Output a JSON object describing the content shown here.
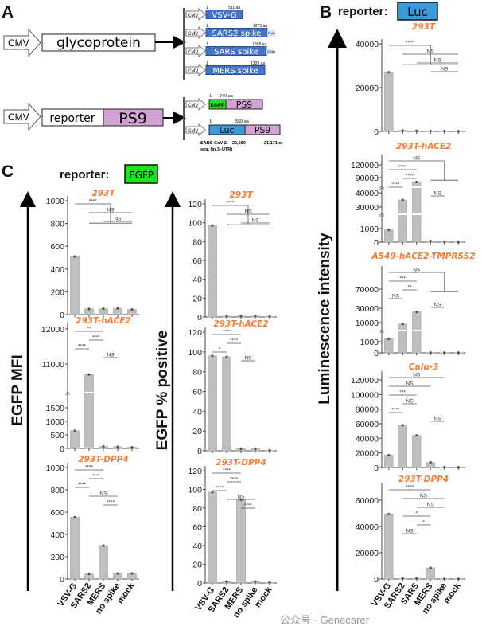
{
  "panels": {
    "A": {
      "letter": "A",
      "promoter": "CMV",
      "glycoprotein_label": "glycoprotein",
      "reporter_label": "reporter",
      "ps9_label": "PS9",
      "glycoproteins": [
        {
          "name": "VSV-G",
          "start": "1",
          "end": "511 aa",
          "tag": ""
        },
        {
          "name": "SARS2 spike",
          "start": "1",
          "end": "1273 aa",
          "tag": "FLAG"
        },
        {
          "name": "SARS spike",
          "start": "1",
          "end": "1268 aa",
          "tag": "C9 tag"
        },
        {
          "name": "MERS spike",
          "start": "1",
          "end": "1339 aa",
          "tag": ""
        }
      ],
      "reporters": [
        {
          "name": "EGFP",
          "start": "1",
          "end": "240 aa"
        },
        {
          "name": "Luc",
          "start": "1",
          "end": "550 aa"
        }
      ],
      "seq_note_1": "SARS-CoV-2:",
      "seq_pos_1": "20,080",
      "seq_pos_2": "21,171 nt",
      "seq_note_2": "seq. (in 3'-UTR)"
    },
    "B": {
      "letter": "B",
      "reporter_prefix": "reporter:",
      "reporter": "Luc",
      "y_axis_title": "Luminescence intensity"
    },
    "C": {
      "letter": "C",
      "reporter_prefix": "reporter:",
      "reporter": "EGFP",
      "y_axis_title_left": "EGFP MFI",
      "y_axis_title_right": "EGFP % positive"
    }
  },
  "colors": {
    "glycoprotein": "#4472c4",
    "egfp": "#22e022",
    "luc": "#3a9ad9",
    "ps9": "#d3a3d6",
    "bar": "#bfbfbf",
    "title": "#f07f3c"
  },
  "watermark": "公众号 · Genecarer",
  "chart_data": [
    {
      "id": "B1",
      "type": "bar",
      "title": "293T",
      "categories": [
        "VSV-G",
        "SARS2",
        "SARS",
        "MERS",
        "no spike",
        "mock"
      ],
      "values": [
        27000,
        400,
        300,
        200,
        200,
        100
      ],
      "yticks": [
        0,
        20000,
        40000
      ],
      "ylim": [
        0,
        42000
      ],
      "sig": [
        {
          "kind": "group",
          "from": 0,
          "g1": 1,
          "g2": 5,
          "label": "****"
        },
        {
          "from": 1,
          "to": 5,
          "label": "NS"
        },
        {
          "from": 2,
          "to": 5,
          "label": "NS"
        },
        {
          "from": 3,
          "to": 5,
          "label": "NS"
        }
      ]
    },
    {
      "id": "B2",
      "type": "bar",
      "title": "293T-hACE2",
      "categories": [
        "VSV-G",
        "SARS2",
        "SARS",
        "MERS",
        "no spike",
        "mock"
      ],
      "values": [
        900,
        35000,
        85000,
        80,
        30,
        20
      ],
      "yticks": [
        0,
        1000,
        30000,
        40000,
        90000,
        120000
      ],
      "axis_breaks": [
        [
          2000,
          25000
        ],
        [
          50000,
          80000
        ]
      ],
      "sig": [
        {
          "kind": "group",
          "from": 0,
          "g1": 3,
          "g2": 5,
          "label": "NS"
        },
        {
          "from": 0,
          "to": 2,
          "label": "****"
        },
        {
          "from": 1,
          "to": 2,
          "label": "****"
        },
        {
          "from": 0,
          "to": 1,
          "label": "****"
        },
        {
          "from": 3,
          "to": 4,
          "label": "NS"
        }
      ]
    },
    {
      "id": "B3",
      "type": "bar",
      "title": "A549-hACE2-TMPRSS2",
      "categories": [
        "VSV-G",
        "SARS2",
        "SARS",
        "MERS",
        "no spike",
        "mock"
      ],
      "values": [
        1300,
        9000,
        25000,
        30,
        20,
        20
      ],
      "yticks": [
        0,
        1000,
        10000,
        30000,
        70000
      ],
      "axis_breaks": [
        [
          2000,
          5000
        ]
      ],
      "sig": [
        {
          "kind": "group",
          "from": 0,
          "g1": 3,
          "g2": 5,
          "label": "NS"
        },
        {
          "from": 0,
          "to": 2,
          "label": "***"
        },
        {
          "from": 1,
          "to": 2,
          "label": "**"
        },
        {
          "from": 0,
          "to": 1,
          "label": "NS"
        },
        {
          "from": 3,
          "to": 4,
          "label": "NS"
        }
      ]
    },
    {
      "id": "B4",
      "type": "bar",
      "title": "Calu-3",
      "categories": [
        "VSV-G",
        "SARS2",
        "SARS",
        "MERS",
        "no spike",
        "mock"
      ],
      "values": [
        17000,
        58000,
        44000,
        7000,
        500,
        500
      ],
      "yticks": [
        0,
        20000,
        40000,
        60000,
        80000,
        100000,
        120000
      ],
      "ylim": [
        0,
        120000
      ],
      "sig": [
        {
          "from": 0,
          "to": 4,
          "label": "NS"
        },
        {
          "from": 0,
          "to": 3,
          "label": "NS"
        },
        {
          "from": 0,
          "to": 2,
          "label": "***"
        },
        {
          "from": 1,
          "to": 2,
          "label": "NS"
        },
        {
          "from": 0,
          "to": 1,
          "label": "****"
        },
        {
          "from": 3,
          "to": 4,
          "label": "NS"
        }
      ]
    },
    {
      "id": "B5",
      "type": "bar",
      "title": "293T-DPP4",
      "categories": [
        "VSV-G",
        "SARS2",
        "SARS",
        "MERS",
        "no spike",
        "mock"
      ],
      "values": [
        49500,
        400,
        500,
        8500,
        200,
        200
      ],
      "yticks": [
        0,
        20000,
        40000,
        60000
      ],
      "ylim": [
        0,
        70000
      ],
      "sig": [
        {
          "from": 0,
          "to": 3,
          "label": "****"
        },
        {
          "from": 1,
          "to": 4,
          "label": "NS"
        },
        {
          "from": 2,
          "to": 4,
          "label": "NS"
        },
        {
          "from": 1,
          "to": 3,
          "label": "*"
        },
        {
          "from": 2,
          "to": 3,
          "label": "*"
        },
        {
          "from": 1,
          "to": 2,
          "label": "NS"
        }
      ]
    },
    {
      "id": "C1",
      "type": "bar",
      "title": "293T",
      "categories": [
        "VSV-G",
        "SARS2",
        "MERS",
        "no spike",
        "mock"
      ],
      "values": [
        510,
        50,
        52,
        55,
        45
      ],
      "yticks": [
        0,
        200,
        400,
        600,
        800,
        1000
      ],
      "ylim": [
        0,
        1000
      ],
      "sig": [
        {
          "kind": "group",
          "from": 0,
          "g1": 1,
          "g2": 4,
          "label": "****"
        },
        {
          "from": 1,
          "to": 4,
          "label": "NS"
        },
        {
          "from": 2,
          "to": 4,
          "label": "NS"
        }
      ]
    },
    {
      "id": "C2",
      "type": "bar",
      "title": "293T-hACE2",
      "categories": [
        "VSV-G",
        "SARS2",
        "MERS",
        "no spike",
        "mock"
      ],
      "values": [
        650,
        10700,
        70,
        60,
        40
      ],
      "yticks": [
        0,
        500,
        1000,
        1500,
        11000,
        12000
      ],
      "axis_breaks": [
        [
          1900,
          10300
        ]
      ],
      "sig": [
        {
          "from": 0,
          "to": 2,
          "label": "**"
        },
        {
          "from": 1,
          "to": 2,
          "label": "****"
        },
        {
          "from": 0,
          "to": 1,
          "label": "****"
        },
        {
          "from": 2,
          "to": 3,
          "label": "NS"
        }
      ]
    },
    {
      "id": "C3",
      "type": "bar",
      "title": "293T-DPP4",
      "categories": [
        "VSV-G",
        "SARS2",
        "MERS",
        "no spike",
        "mock"
      ],
      "values": [
        555,
        45,
        300,
        50,
        50
      ],
      "yticks": [
        0,
        200,
        400,
        600,
        800,
        1000
      ],
      "ylim": [
        0,
        1000
      ],
      "sig": [
        {
          "from": 0,
          "to": 2,
          "label": "****"
        },
        {
          "from": 1,
          "to": 2,
          "label": "****"
        },
        {
          "from": 0,
          "to": 1,
          "label": "****"
        },
        {
          "from": 1,
          "to": 3,
          "label": "NS"
        },
        {
          "from": 2,
          "to": 3,
          "label": "****"
        }
      ]
    },
    {
      "id": "C4",
      "type": "bar",
      "title": "293T",
      "categories": [
        "VSV-G",
        "SARS2",
        "MERS",
        "no spike",
        "mock"
      ],
      "values": [
        97,
        1,
        1,
        1,
        0.5
      ],
      "yticks": [
        0,
        20,
        40,
        60,
        80,
        100,
        120
      ],
      "ylim": [
        0,
        120
      ],
      "sig": [
        {
          "kind": "group",
          "from": 0,
          "g1": 1,
          "g2": 4,
          "label": "****"
        },
        {
          "from": 1,
          "to": 4,
          "label": "NS"
        },
        {
          "from": 2,
          "to": 4,
          "label": "NS"
        }
      ]
    },
    {
      "id": "C5",
      "type": "bar",
      "title": "293T-hACE2",
      "categories": [
        "VSV-G",
        "SARS2",
        "MERS",
        "no spike",
        "mock"
      ],
      "values": [
        96,
        95,
        2,
        2,
        0.5
      ],
      "yticks": [
        0,
        20,
        40,
        60,
        80,
        100,
        120
      ],
      "ylim": [
        0,
        120
      ],
      "sig": [
        {
          "from": 0,
          "to": 2,
          "label": "****"
        },
        {
          "from": 1,
          "to": 2,
          "label": "****"
        },
        {
          "from": 0,
          "to": 1,
          "label": "*"
        },
        {
          "from": 2,
          "to": 3,
          "label": "NS"
        }
      ]
    },
    {
      "id": "C6",
      "type": "bar",
      "title": "293T-DPP4",
      "categories": [
        "VSV-G",
        "SARS2",
        "MERS",
        "no spike",
        "mock"
      ],
      "values": [
        97,
        1.5,
        89,
        1.5,
        0.5
      ],
      "yticks": [
        0,
        20,
        40,
        60,
        80,
        100,
        120
      ],
      "ylim": [
        0,
        120
      ],
      "sig": [
        {
          "from": 0,
          "to": 2,
          "label": "****"
        },
        {
          "from": 1,
          "to": 2,
          "label": "****"
        },
        {
          "from": 0,
          "to": 1,
          "label": "****"
        },
        {
          "from": 1,
          "to": 3,
          "label": "NS"
        },
        {
          "from": 2,
          "to": 3,
          "label": "****"
        }
      ]
    }
  ]
}
